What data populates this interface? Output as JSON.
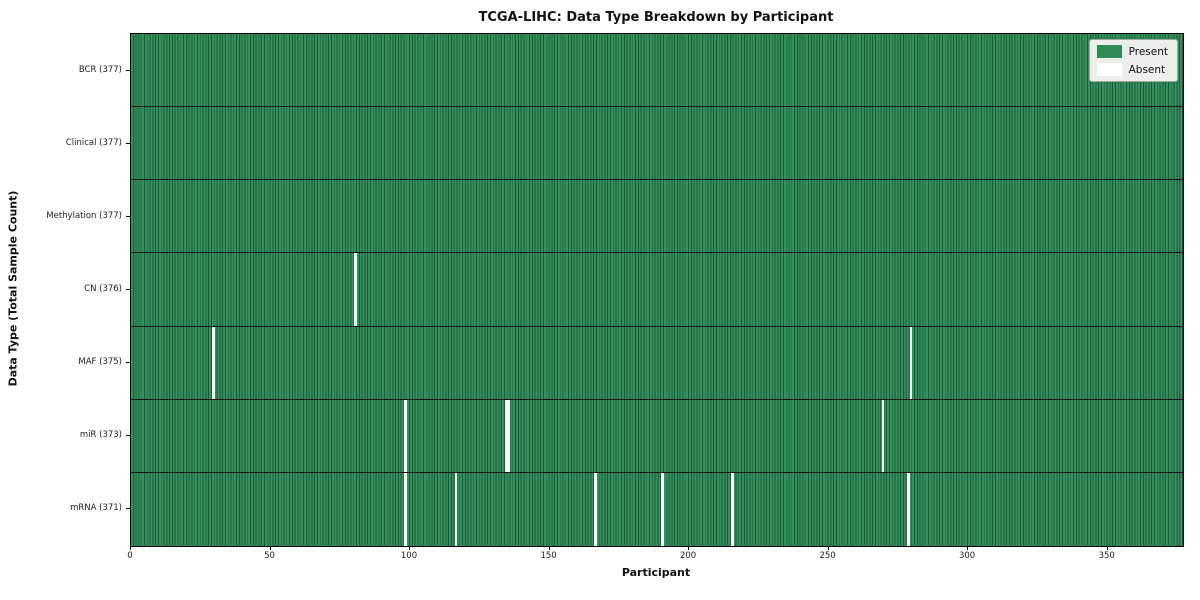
{
  "chart_data": {
    "type": "heatmap",
    "title": "TCGA-LIHC: Data Type Breakdown by Participant",
    "xlabel": "Participant",
    "ylabel": "Data Type (Total Sample Count)",
    "x_range": [
      0,
      377
    ],
    "x_ticks": [
      0,
      50,
      100,
      150,
      200,
      250,
      300,
      350
    ],
    "n_participants": 377,
    "rows": [
      {
        "label": "BCR (377)",
        "data_type": "BCR",
        "total": 377,
        "absent_participants": []
      },
      {
        "label": "Clinical (377)",
        "data_type": "Clinical",
        "total": 377,
        "absent_participants": []
      },
      {
        "label": "Methylation (377)",
        "data_type": "Methylation",
        "total": 377,
        "absent_participants": []
      },
      {
        "label": "CN (376)",
        "data_type": "CN",
        "total": 376,
        "absent_participants": [
          80
        ]
      },
      {
        "label": "MAF (375)",
        "data_type": "MAF",
        "total": 375,
        "absent_participants": [
          29,
          279
        ]
      },
      {
        "label": "miR (373)",
        "data_type": "miR",
        "total": 373,
        "absent_participants": [
          98,
          134,
          135,
          269
        ]
      },
      {
        "label": "mRNA (371)",
        "data_type": "mRNA",
        "total": 371,
        "absent_participants": [
          98,
          116,
          166,
          190,
          215,
          278
        ]
      }
    ],
    "legend": [
      {
        "label": "Present",
        "color": "#2e8b57"
      },
      {
        "label": "Absent",
        "color": "#ffffff"
      }
    ],
    "legend_position": "upper right",
    "grid": false,
    "colors": {
      "present": "#33915d",
      "cell_edge": "#1c5a37",
      "row_divider": "#141414",
      "absent": "#ffffff",
      "axis": "#000000",
      "legend_bg": "#ebeeeb"
    }
  }
}
